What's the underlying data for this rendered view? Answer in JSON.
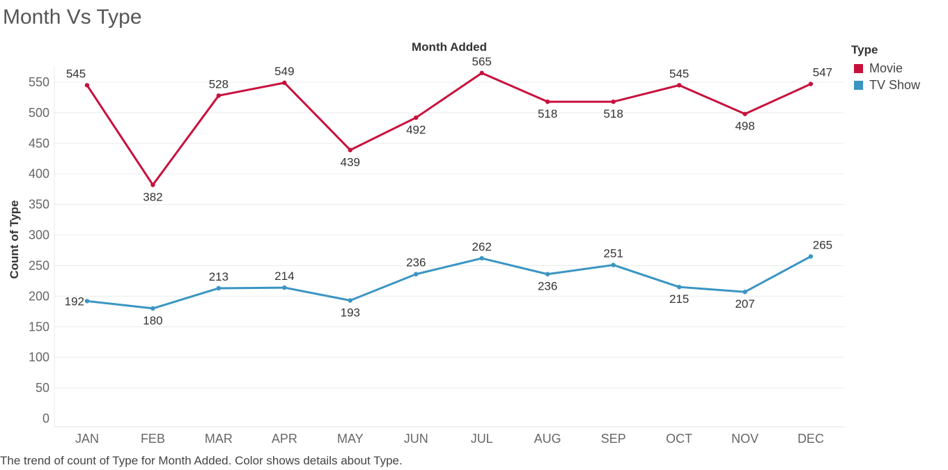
{
  "page": {
    "title": "Month Vs Type",
    "caption": "The trend of count of Type for Month Added.  Color shows details about Type."
  },
  "legend": {
    "title": "Type",
    "items": [
      {
        "label": "Movie",
        "color": "#c8103c"
      },
      {
        "label": "TV Show",
        "color": "#3a95c2"
      }
    ]
  },
  "chart_data": {
    "type": "line",
    "title": "Month Added",
    "xlabel": "Month Added",
    "ylabel": "Count of Type",
    "ylim": [
      0,
      600
    ],
    "yticks": [
      0,
      50,
      100,
      150,
      200,
      250,
      300,
      350,
      400,
      450,
      500,
      550
    ],
    "grid": true,
    "legend_position": "right",
    "categories": [
      "JAN",
      "FEB",
      "MAR",
      "APR",
      "MAY",
      "JUN",
      "JUL",
      "AUG",
      "SEP",
      "OCT",
      "NOV",
      "DEC"
    ],
    "series": [
      {
        "name": "Movie",
        "color": "#c8103c",
        "values": [
          545,
          382,
          528,
          549,
          439,
          492,
          565,
          518,
          518,
          545,
          498,
          547
        ],
        "label_positions": [
          "above",
          "below",
          "above",
          "above",
          "below",
          "below",
          "above",
          "below",
          "below",
          "above",
          "below",
          "above"
        ]
      },
      {
        "name": "TV Show",
        "color": "#3a95c2",
        "values": [
          192,
          180,
          213,
          214,
          193,
          236,
          262,
          236,
          251,
          215,
          207,
          265
        ],
        "label_positions": [
          "left",
          "below",
          "above",
          "above",
          "below",
          "above",
          "above",
          "below",
          "above",
          "below",
          "below",
          "above"
        ]
      }
    ]
  }
}
